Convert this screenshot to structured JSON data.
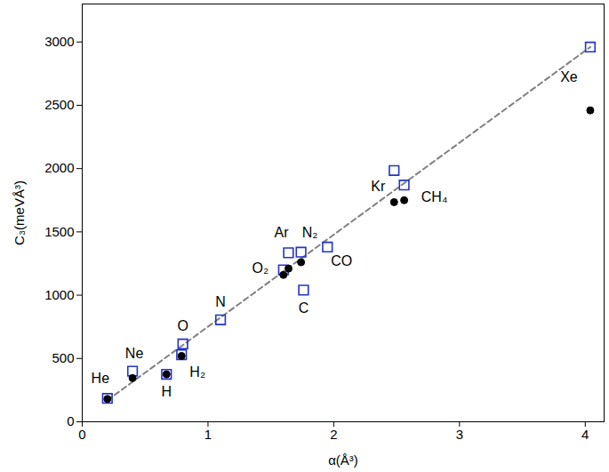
{
  "chart_data": {
    "type": "scatter",
    "x_label": "α(Å³)",
    "y_label": "C₃(meVÅ³)",
    "xlim": [
      0,
      4.15
    ],
    "ylim": [
      0,
      3300
    ],
    "xticks": [
      0,
      1,
      2,
      3,
      4
    ],
    "yticks": [
      0,
      500,
      1000,
      1500,
      2000,
      2500,
      3000
    ],
    "grid": false,
    "series": [
      {
        "type": "line",
        "color": "#808080",
        "line_style": "dashed",
        "x": [
          0.2,
          4.04
        ],
        "y": [
          170,
          2960
        ]
      },
      {
        "type": "scatter",
        "color": "#2233cc",
        "marker": "open_square",
        "x": [
          0.2,
          0.4,
          0.67,
          0.79,
          0.8,
          1.1,
          1.6,
          1.64,
          1.74,
          1.76,
          1.95,
          2.48,
          2.56,
          4.04
        ],
        "y": [
          185,
          400,
          375,
          530,
          615,
          805,
          1200,
          1335,
          1340,
          1040,
          1380,
          1985,
          1870,
          2960
        ],
        "labels": [
          "He",
          "Ne",
          "H",
          "H₂",
          "O",
          "N",
          "O₂",
          "Ar",
          "N₂",
          "C",
          "CO",
          "Kr",
          "CH₄",
          "Xe"
        ]
      },
      {
        "type": "scatter",
        "color": "#000000",
        "marker": "circle",
        "x": [
          0.2,
          0.4,
          0.67,
          0.79,
          1.6,
          1.64,
          1.74,
          2.48,
          2.56,
          4.04
        ],
        "y": [
          180,
          345,
          375,
          520,
          1160,
          1210,
          1260,
          1735,
          1750,
          2460
        ]
      }
    ]
  }
}
